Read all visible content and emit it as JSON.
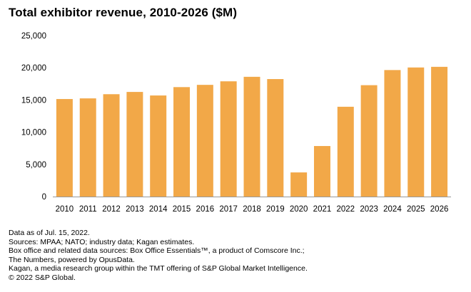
{
  "chart_data": {
    "type": "bar",
    "title": "Total exhibitor revenue, 2010-2026 ($M)",
    "xlabel": "",
    "ylabel": "",
    "categories": [
      "2010",
      "2011",
      "2012",
      "2013",
      "2014",
      "2015",
      "2016",
      "2017",
      "2018",
      "2019",
      "2020",
      "2021",
      "2022",
      "2023",
      "2024",
      "2025",
      "2026"
    ],
    "values": [
      15150,
      15250,
      15900,
      16250,
      15700,
      17000,
      17350,
      17900,
      18600,
      18250,
      3750,
      7850,
      13950,
      17300,
      19650,
      20050,
      20150
    ],
    "ylim": [
      0,
      25000
    ],
    "yticks": [
      0,
      5000,
      10000,
      15000,
      20000,
      25000
    ],
    "ytick_labels": [
      "0",
      "5,000",
      "10,000",
      "15,000",
      "20,000",
      "25,000"
    ],
    "grid": false,
    "legend": "none",
    "bar_color": "#F2A848",
    "axis_color": "#999999"
  },
  "notes": [
    "Data as of Jul. 15, 2022.",
    "Sources: MPAA; NATO; industry data; Kagan estimates.",
    "Box office and related data sources: Box Office Essentials™, a product of Comscore Inc.;",
    "The Numbers, powered by OpusData.",
    "Kagan, a media research group within the TMT offering of S&P Global Market Intelligence.",
    "© 2022 S&P Global."
  ]
}
